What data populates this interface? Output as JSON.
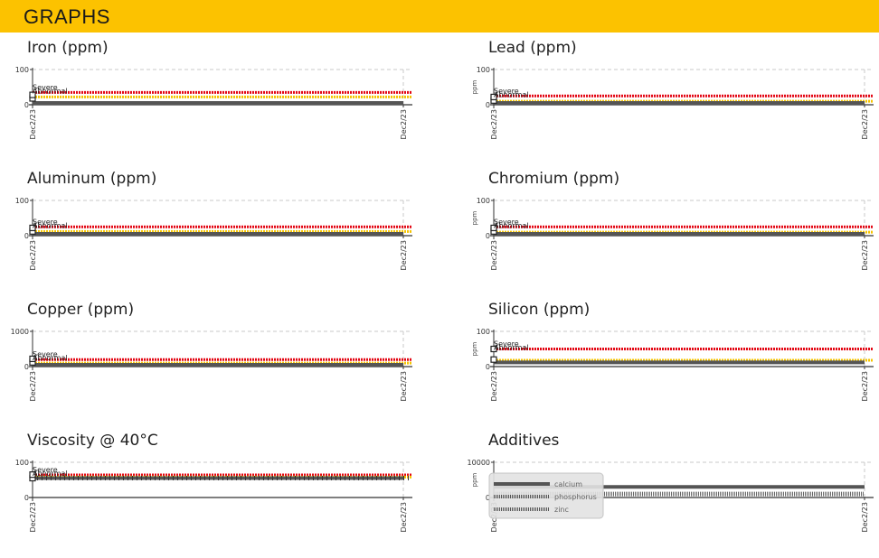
{
  "header": {
    "title": "GRAPHS"
  },
  "colors": {
    "header_bg": "#fcc200",
    "severe": "#e30613",
    "abnormal": "#f5c400",
    "line": "#555555"
  },
  "chart_data": [
    {
      "id": "iron",
      "title": "Iron (ppm)",
      "type": "line",
      "ylabel": "",
      "ylim": [
        0,
        100
      ],
      "yticks": [
        "100",
        "0"
      ],
      "x": [
        "Dec2/23",
        "Dec2/23"
      ],
      "severe": 35,
      "abnormal": 22,
      "series": [
        {
          "values": [
            0,
            0
          ]
        }
      ],
      "marker_values": [
        18,
        28
      ],
      "marker_labels": [
        "Severe",
        "Abnormal"
      ]
    },
    {
      "id": "lead",
      "title": "Lead (ppm)",
      "type": "line",
      "ylabel": "ppm",
      "ylim": [
        0,
        100
      ],
      "yticks": [
        "100",
        "0"
      ],
      "x": [
        "Dec2/23",
        "Dec2/23"
      ],
      "severe": 25,
      "abnormal": 10,
      "series": [
        {
          "values": [
            0,
            0
          ]
        }
      ],
      "marker_values": [
        12,
        22
      ],
      "marker_labels": [
        "Severe",
        "Abnormal"
      ]
    },
    {
      "id": "aluminum",
      "title": "Aluminum (ppm)",
      "type": "line",
      "ylabel": "",
      "ylim": [
        0,
        100
      ],
      "yticks": [
        "100",
        "0"
      ],
      "x": [
        "Dec2/23",
        "Dec2/23"
      ],
      "severe": 25,
      "abnormal": 12,
      "series": [
        {
          "values": [
            0,
            0
          ]
        }
      ],
      "marker_values": [
        12,
        22
      ],
      "marker_labels": [
        "Severe",
        "Abnormal"
      ]
    },
    {
      "id": "chromium",
      "title": "Chromium (ppm)",
      "type": "line",
      "ylabel": "ppm",
      "ylim": [
        0,
        100
      ],
      "yticks": [
        "100",
        "0"
      ],
      "x": [
        "Dec2/23",
        "Dec2/23"
      ],
      "severe": 25,
      "abnormal": 10,
      "series": [
        {
          "values": [
            0,
            0
          ]
        }
      ],
      "marker_values": [
        12,
        22
      ],
      "marker_labels": [
        "Severe",
        "Abnormal"
      ]
    },
    {
      "id": "copper",
      "title": "Copper (ppm)",
      "type": "line",
      "ylabel": "",
      "ylim": [
        0,
        1000
      ],
      "yticks": [
        "1000",
        "0"
      ],
      "x": [
        "Dec2/23",
        "Dec2/23"
      ],
      "severe": 200,
      "abnormal": 100,
      "series": [
        {
          "values": [
            0,
            0
          ]
        }
      ],
      "marker_values": [
        120,
        220
      ],
      "marker_labels": [
        "Severe",
        "Abnormal"
      ]
    },
    {
      "id": "silicon",
      "title": "Silicon (ppm)",
      "type": "line",
      "ylabel": "ppm",
      "ylim": [
        0,
        100
      ],
      "yticks": [
        "100",
        "0"
      ],
      "x": [
        "Dec2/23",
        "Dec2/23"
      ],
      "severe": 50,
      "abnormal": 18,
      "series": [
        {
          "values": [
            12,
            12
          ]
        }
      ],
      "marker_values": [
        20,
        50
      ],
      "marker_labels": [
        "Severe",
        "Abnormal"
      ]
    },
    {
      "id": "viscosity",
      "title": "Viscosity @ 40°C",
      "type": "line",
      "ylabel": "",
      "ylim": [
        0,
        100
      ],
      "yticks": [
        "100",
        "0"
      ],
      "x": [
        "Dec2/23",
        "Dec2/23"
      ],
      "severe": 64,
      "abnormal": 58,
      "series": [
        {
          "values": [
            55,
            55
          ]
        }
      ],
      "marker_values": [
        55,
        65
      ],
      "marker_labels": [
        "Severe",
        "Abnormal"
      ]
    },
    {
      "id": "additives",
      "title": "Additives",
      "type": "line",
      "ylabel": "ppm",
      "ylim": [
        0,
        10000
      ],
      "yticks": [
        "10000",
        "0"
      ],
      "x": [
        "Dec2/23",
        "Dec2/23"
      ],
      "series": [
        {
          "name": "calcium",
          "values": [
            3000,
            3000
          ]
        },
        {
          "name": "phosphorus",
          "values": [
            1000,
            1000
          ]
        },
        {
          "name": "zinc",
          "values": [
            1000,
            1000
          ]
        }
      ],
      "legend": {
        "placement": "top-left",
        "items": [
          "calcium",
          "phosphorus",
          "zinc"
        ]
      }
    }
  ]
}
